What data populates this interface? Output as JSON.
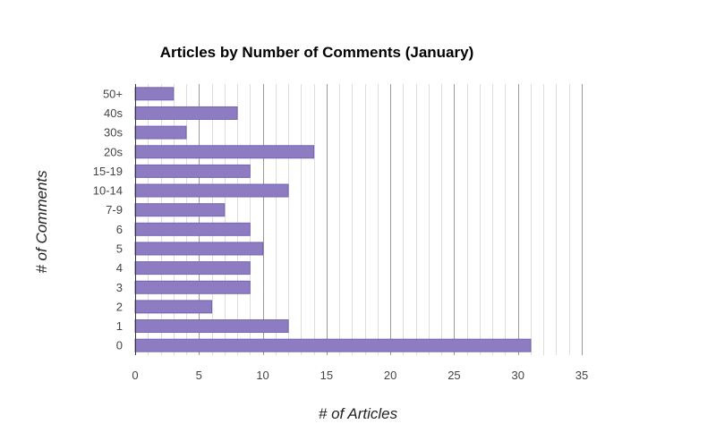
{
  "chart_data": {
    "type": "bar",
    "orientation": "horizontal",
    "title": "Articles by Number of Comments (January)",
    "xlabel": "# of Articles",
    "ylabel": "# of Comments",
    "categories": [
      "50+",
      "40s",
      "30s",
      "20s",
      "15-19",
      "10-14",
      "7-9",
      "6",
      "5",
      "4",
      "3",
      "2",
      "1",
      "0"
    ],
    "values": [
      3,
      8,
      4,
      14,
      9,
      12,
      7,
      9,
      10,
      9,
      9,
      6,
      12,
      31
    ],
    "xlim": [
      0,
      35
    ],
    "xticks": [
      "0",
      "5",
      "10",
      "15",
      "20",
      "25",
      "30",
      "35"
    ],
    "grid": true,
    "legend": "none",
    "colors": {
      "bar": "#8E7CC3",
      "bar_stroke": "#7565b0",
      "major_grid": "#999999",
      "minor_grid": "#dddddd",
      "axis": "#333333"
    }
  }
}
